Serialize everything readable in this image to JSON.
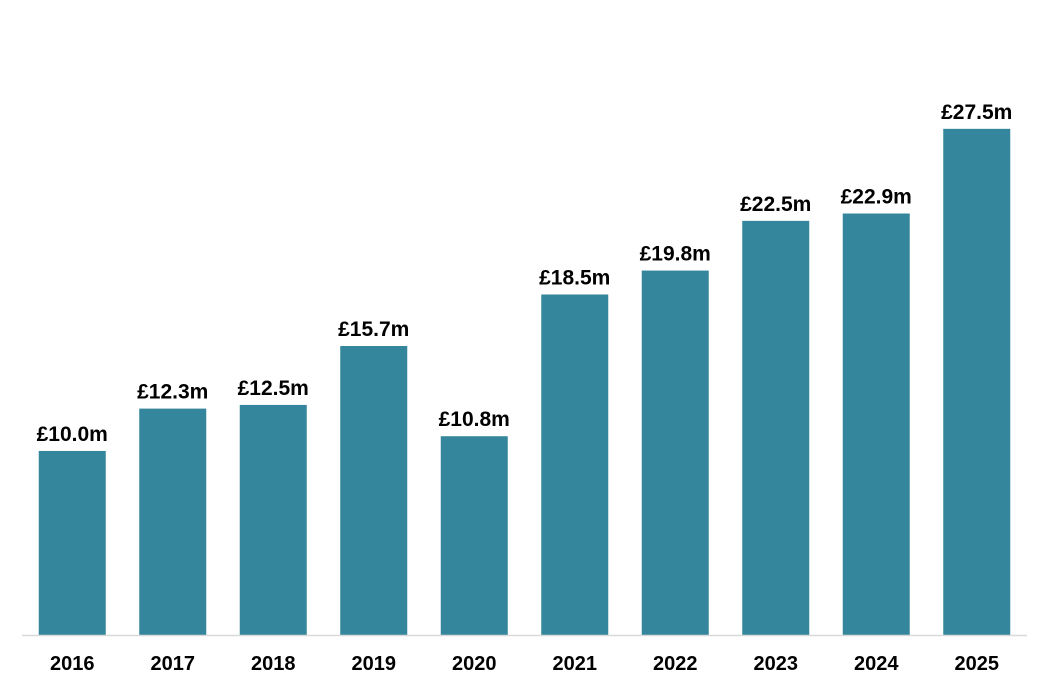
{
  "chart_data": {
    "type": "bar",
    "categories": [
      "2016",
      "2017",
      "2018",
      "2019",
      "2020",
      "2021",
      "2022",
      "2023",
      "2024",
      "2025"
    ],
    "values": [
      10.0,
      12.3,
      12.5,
      15.7,
      10.8,
      18.5,
      19.8,
      22.5,
      22.9,
      27.5
    ],
    "data_labels": [
      "£10.0m",
      "£12.3m",
      "£12.5m",
      "£15.7m",
      "£10.8m",
      "£18.5m",
      "£19.8m",
      "£22.5m",
      "£22.9m",
      "£27.5m"
    ],
    "title": "",
    "xlabel": "",
    "ylabel": "",
    "ylim": [
      0,
      34.5
    ],
    "grid": false,
    "legend": "none",
    "colors": {
      "bar": "#33869C",
      "axis": "#d9d9d9",
      "text": "#000000"
    }
  }
}
